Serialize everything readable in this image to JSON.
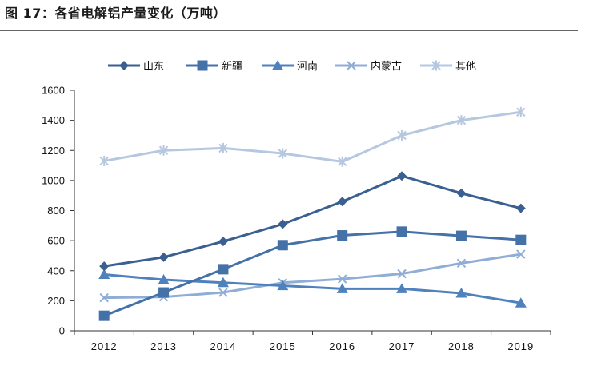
{
  "figure_title": "图 17：各省电解铝产量变化（万吨）",
  "chart_data": {
    "type": "line",
    "title": "",
    "xlabel": "",
    "ylabel": "",
    "ylim": [
      0,
      1600
    ],
    "yticks": [
      0,
      200,
      400,
      600,
      800,
      1000,
      1200,
      1400,
      1600
    ],
    "grid": false,
    "legend_position": "top-center",
    "x": [
      "2012",
      "2013",
      "2014",
      "2015",
      "2016",
      "2017",
      "2018",
      "2019"
    ],
    "series": [
      {
        "name": "山东",
        "marker": "diamond",
        "color": "#3a5f91",
        "values": [
          430,
          490,
          595,
          710,
          860,
          1030,
          915,
          815
        ]
      },
      {
        "name": "新疆",
        "marker": "square",
        "color": "#4472a8",
        "values": [
          100,
          255,
          410,
          570,
          635,
          660,
          632,
          605
        ]
      },
      {
        "name": "河南",
        "marker": "triangle",
        "color": "#4f82bd",
        "values": [
          375,
          340,
          320,
          300,
          280,
          280,
          250,
          185
        ]
      },
      {
        "name": "内蒙古",
        "marker": "x",
        "color": "#8faed6",
        "values": [
          220,
          225,
          255,
          320,
          345,
          380,
          450,
          510
        ]
      },
      {
        "name": "其他",
        "marker": "asterisk",
        "color": "#b6c7e0",
        "values": [
          1130,
          1200,
          1215,
          1180,
          1125,
          1300,
          1400,
          1455
        ]
      }
    ]
  }
}
